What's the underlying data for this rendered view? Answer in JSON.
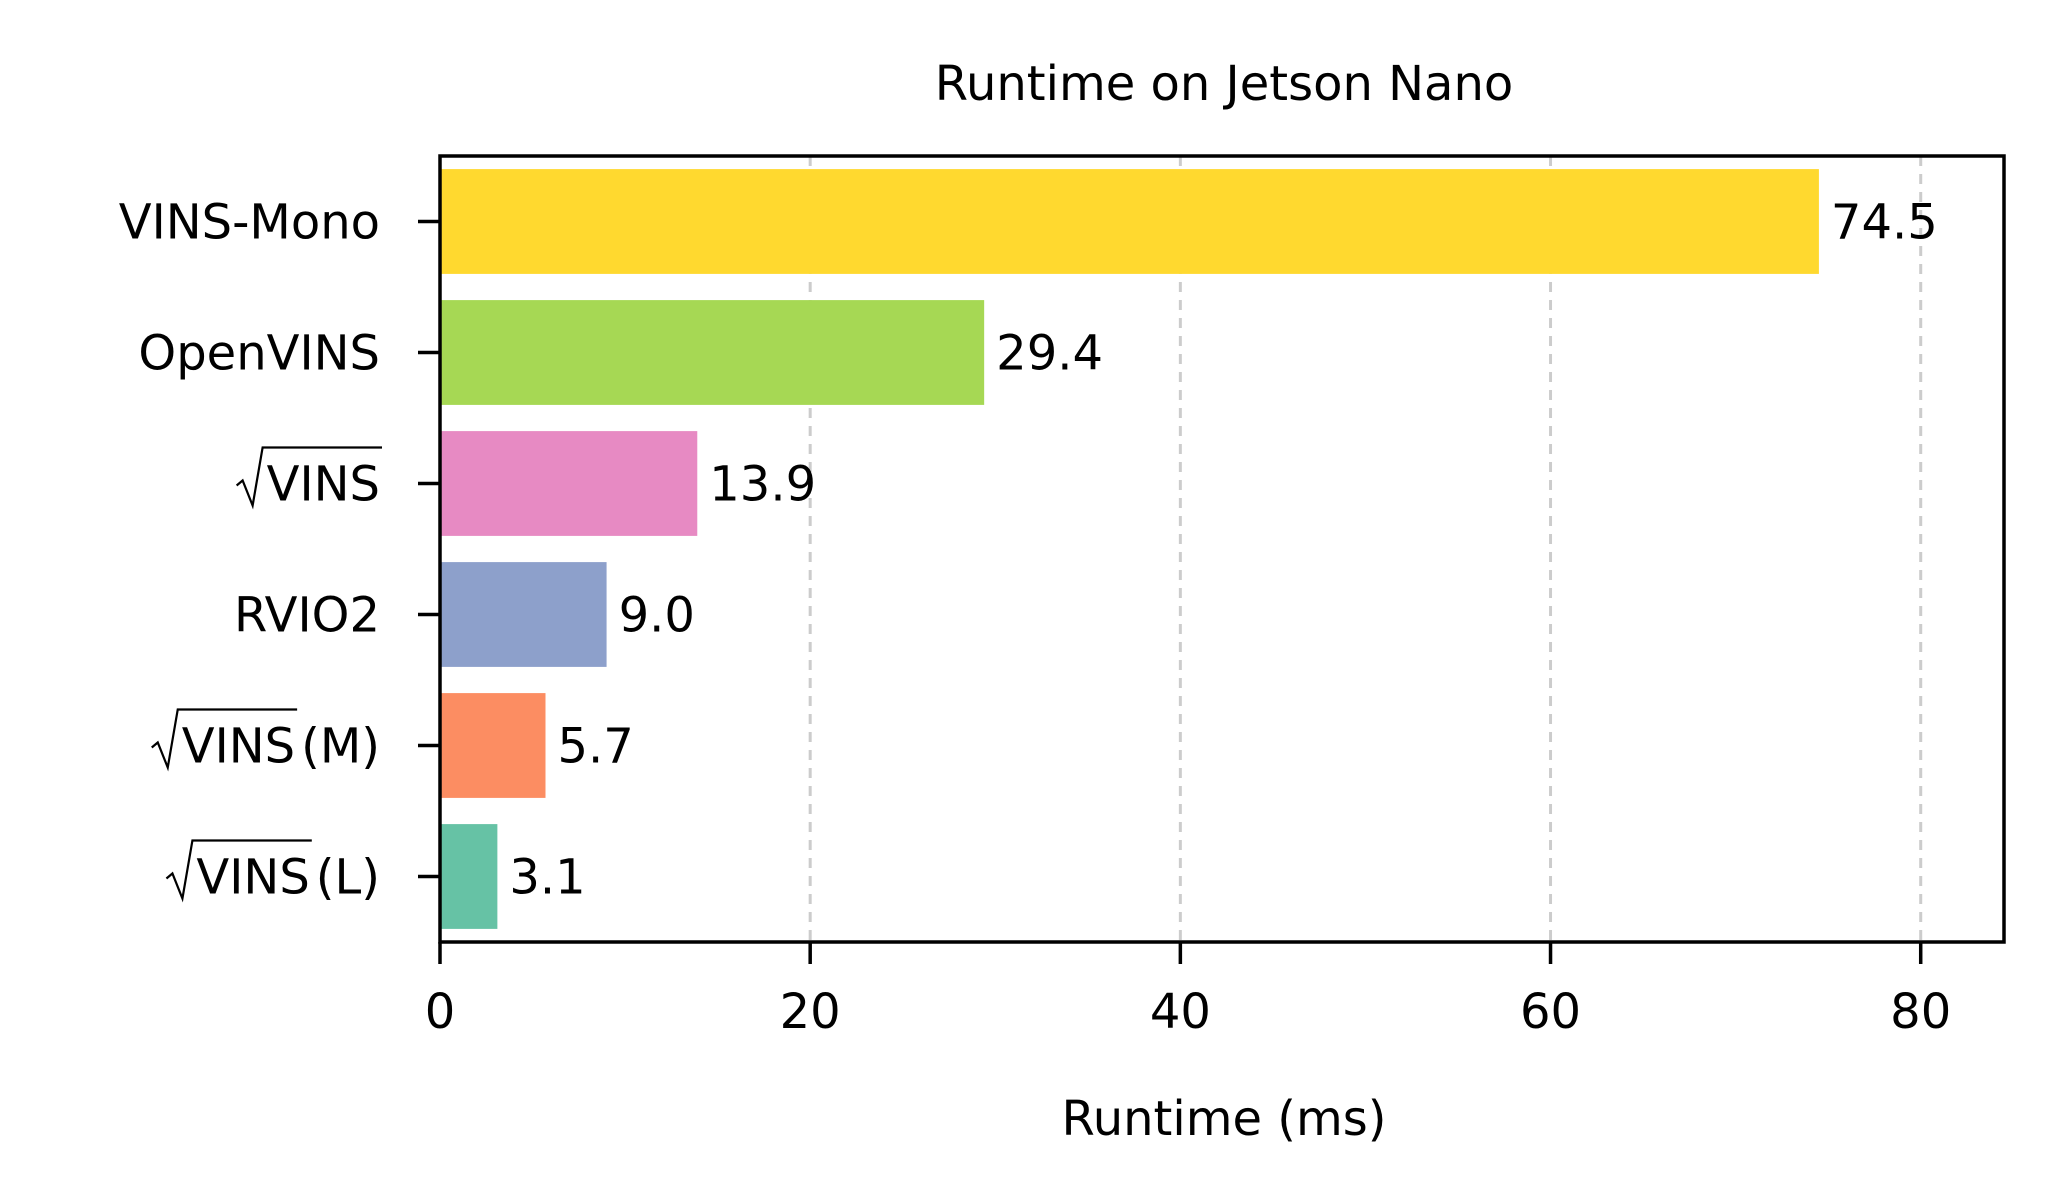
{
  "chart_data": {
    "type": "bar",
    "orientation": "horizontal",
    "title": "Runtime on Jetson Nano",
    "xlabel": "Runtime (ms)",
    "ylabel": "",
    "xlim": [
      0,
      84.5
    ],
    "xticks": [
      "0",
      "20",
      "40",
      "60",
      "80"
    ],
    "grid": {
      "x": true,
      "style": "dashed"
    },
    "legend": "none",
    "categories": [
      {
        "label": "VINS-Mono",
        "sqrt": false,
        "suffix": ""
      },
      {
        "label": "OpenVINS",
        "sqrt": false,
        "suffix": ""
      },
      {
        "label": "VINS",
        "sqrt": true,
        "suffix": ""
      },
      {
        "label": "RVIO2",
        "sqrt": false,
        "suffix": ""
      },
      {
        "label": "VINS",
        "sqrt": true,
        "suffix": "(M)"
      },
      {
        "label": "VINS",
        "sqrt": true,
        "suffix": "(L)"
      }
    ],
    "values": [
      74.5,
      29.4,
      13.9,
      9.0,
      5.7,
      3.1
    ],
    "value_labels": [
      "74.5",
      "29.4",
      "13.9",
      "9.0",
      "5.7",
      "3.1"
    ],
    "colors": [
      "#ffd92f",
      "#a6d854",
      "#e78ac3",
      "#8da0cb",
      "#fc8d62",
      "#66c2a5"
    ],
    "grid_color": "#cccccc"
  }
}
